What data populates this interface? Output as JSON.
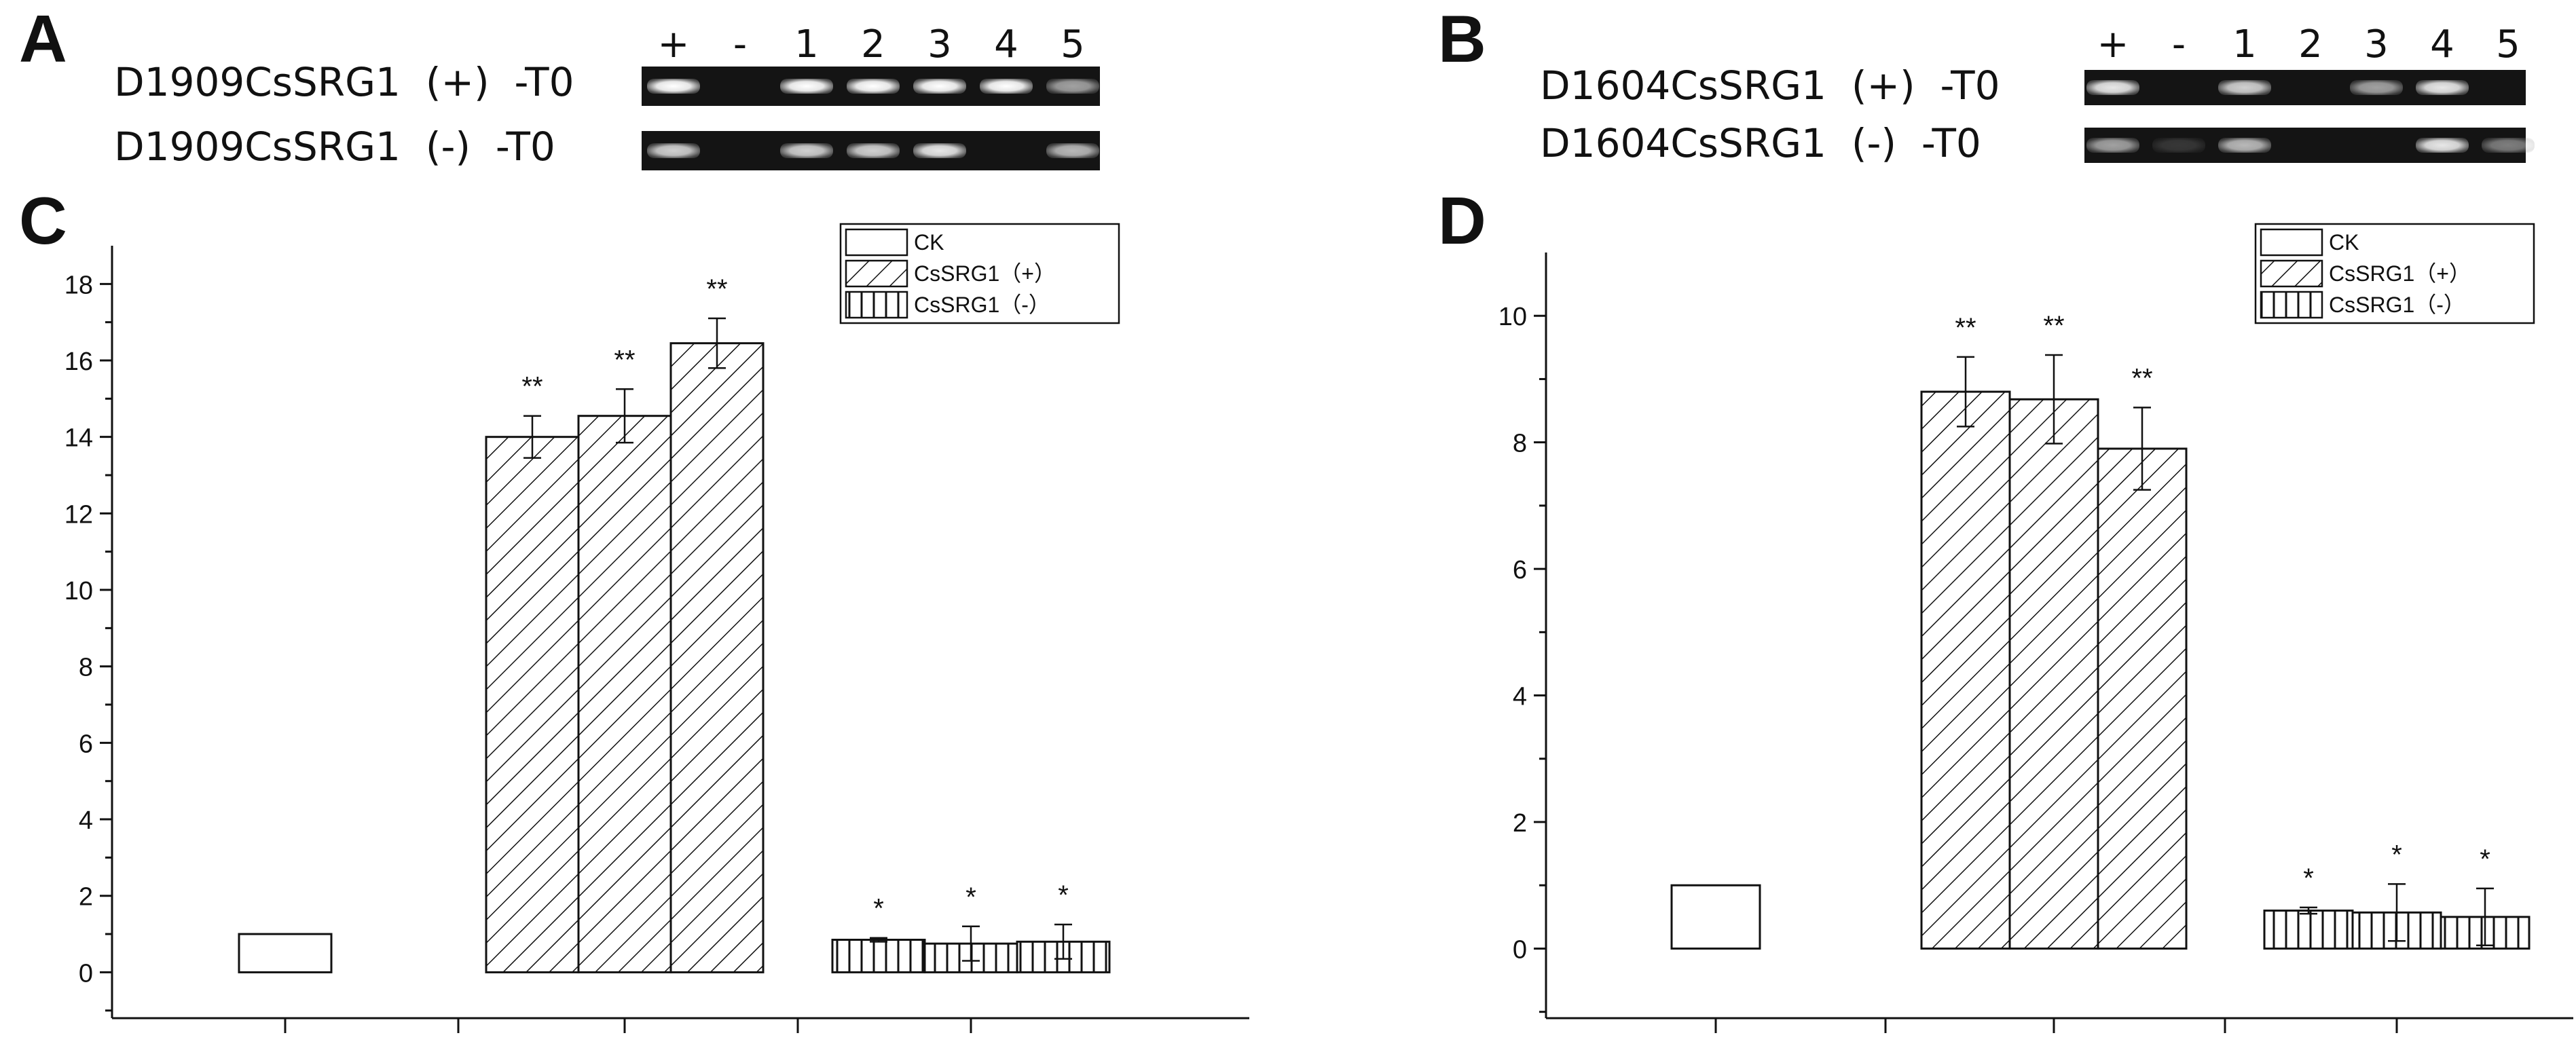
{
  "panels": {
    "A": {
      "letter": "A",
      "lanes": [
        "+",
        "-",
        "1",
        "2",
        "3",
        "4",
        "5"
      ],
      "rows": [
        {
          "label": "D1909CsSRG1  (+)  -T0",
          "bands": [
            1,
            0,
            1,
            1,
            1,
            1,
            0.6
          ]
        },
        {
          "label": "D1909CsSRG1  (-)  -T0",
          "bands": [
            0.8,
            0,
            0.8,
            0.8,
            0.9,
            0,
            0.7
          ]
        }
      ]
    },
    "B": {
      "letter": "B",
      "lanes": [
        "+",
        "-",
        "1",
        "2",
        "3",
        "4",
        "5"
      ],
      "rows": [
        {
          "label": "D1604CsSRG1  (+)  -T0",
          "bands": [
            0.9,
            0,
            0.8,
            0,
            0.6,
            0.9,
            0
          ]
        },
        {
          "label": "D1604CsSRG1  (-)  -T0",
          "bands": [
            0.6,
            0.15,
            0.7,
            0,
            0,
            0.9,
            0.45
          ]
        }
      ]
    }
  },
  "chart_data": [
    {
      "panel": "C",
      "type": "bar",
      "ylim": [
        -1.2,
        19.0
      ],
      "yticks": [
        0,
        2,
        4,
        6,
        8,
        10,
        12,
        14,
        16,
        18
      ],
      "legend_position": "top-right",
      "legend": [
        "CK",
        "CsSRG1（+）",
        "CsSRG1（-）"
      ],
      "groups": [
        {
          "series": "CK",
          "pattern": "none",
          "bars": [
            {
              "value": 1.0,
              "error": 0,
              "sig": ""
            }
          ]
        },
        {
          "series": "CsSRG1（+）",
          "pattern": "diagonal",
          "bars": [
            {
              "value": 14.0,
              "error": 0.55,
              "sig": "**"
            },
            {
              "value": 14.55,
              "error": 0.7,
              "sig": "**"
            },
            {
              "value": 16.45,
              "error": 0.65,
              "sig": "**"
            }
          ]
        },
        {
          "series": "CsSRG1（-）",
          "pattern": "vertical",
          "bars": [
            {
              "value": 0.85,
              "error": 0.05,
              "sig": "*"
            },
            {
              "value": 0.75,
              "error": 0.45,
              "sig": "*"
            },
            {
              "value": 0.8,
              "error": 0.45,
              "sig": "*"
            }
          ]
        }
      ]
    },
    {
      "panel": "D",
      "type": "bar",
      "ylim": [
        -1.1,
        11.0
      ],
      "yticks": [
        0,
        2,
        4,
        6,
        8,
        10
      ],
      "legend_position": "top-right",
      "legend": [
        "CK",
        "CsSRG1（+）",
        "CsSRG1（-）"
      ],
      "groups": [
        {
          "series": "CK",
          "pattern": "none",
          "bars": [
            {
              "value": 1.0,
              "error": 0,
              "sig": ""
            }
          ]
        },
        {
          "series": "CsSRG1（+）",
          "pattern": "diagonal",
          "bars": [
            {
              "value": 8.8,
              "error": 0.55,
              "sig": "**"
            },
            {
              "value": 8.68,
              "error": 0.7,
              "sig": "**"
            },
            {
              "value": 7.9,
              "error": 0.65,
              "sig": "**"
            }
          ]
        },
        {
          "series": "CsSRG1（-）",
          "pattern": "vertical",
          "bars": [
            {
              "value": 0.6,
              "error": 0.05,
              "sig": "*"
            },
            {
              "value": 0.57,
              "error": 0.45,
              "sig": "*"
            },
            {
              "value": 0.5,
              "error": 0.45,
              "sig": "*"
            }
          ]
        }
      ]
    }
  ]
}
